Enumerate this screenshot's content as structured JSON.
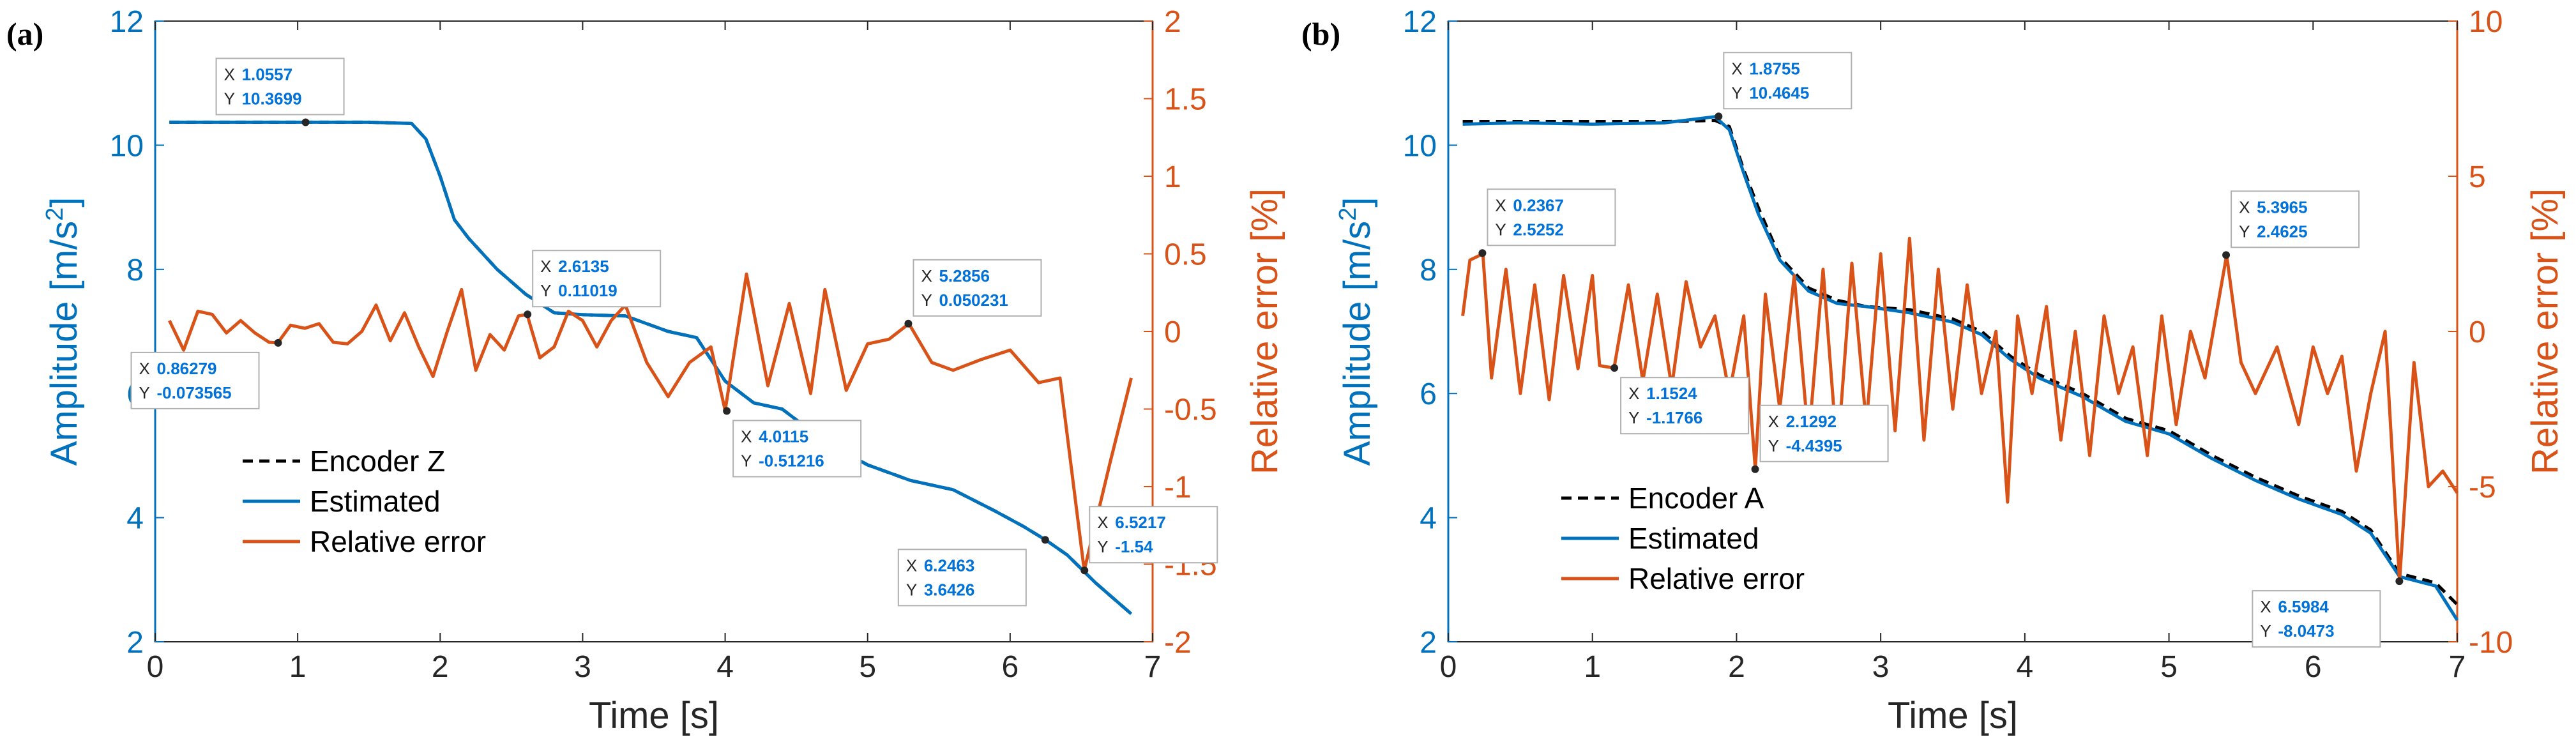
{
  "colors": {
    "blue": "#0072BD",
    "orange": "#D95319",
    "black": "#000000",
    "tipBlue": "#0072DA"
  },
  "chart_data": [
    {
      "type": "line",
      "panel_label": "(a)",
      "xlabel": "Time [s]",
      "ylabel_left": "Amplitude [m/s²]",
      "ylabel_left_base": "Amplitude [m/s",
      "ylabel_left_sup": "2",
      "ylabel_left_end": "]",
      "ylabel_right": "Relative error [%]",
      "xlim": [
        0,
        7
      ],
      "ylim_left": [
        2,
        12
      ],
      "ylim_right": [
        -2,
        2
      ],
      "xticks": [
        "0",
        "1",
        "2",
        "3",
        "4",
        "5",
        "6",
        "7"
      ],
      "yticks_left": [
        "2",
        "4",
        "6",
        "8",
        "10",
        "12"
      ],
      "yticks_right": [
        "-2",
        "-1.5",
        "-1",
        "-0.5",
        "0",
        "0.5",
        "1",
        "1.5",
        "2"
      ],
      "legend": [
        "Encoder Z",
        "Estimated",
        "Relative error"
      ],
      "series": [
        {
          "name": "Encoder Z",
          "axis": "left",
          "style": "dashed",
          "x": [
            0.1,
            0.5,
            1.0,
            1.5,
            1.8,
            1.9,
            2.0,
            2.1,
            2.2,
            2.4,
            2.6,
            2.8,
            3.0,
            3.3,
            3.6,
            3.8,
            4.0,
            4.2,
            4.4,
            4.6,
            4.8,
            5.0,
            5.3,
            5.6,
            5.9,
            6.1,
            6.25,
            6.4,
            6.6,
            6.85
          ],
          "y": [
            10.37,
            10.37,
            10.37,
            10.37,
            10.35,
            10.1,
            9.5,
            8.8,
            8.5,
            8.0,
            7.6,
            7.3,
            7.27,
            7.25,
            7.0,
            6.9,
            6.2,
            5.85,
            5.75,
            5.4,
            5.1,
            4.85,
            4.6,
            4.45,
            4.1,
            3.85,
            3.64,
            3.4,
            2.95,
            2.45
          ]
        },
        {
          "name": "Estimated",
          "axis": "left",
          "style": "solid",
          "x": [
            0.1,
            0.5,
            1.0,
            1.5,
            1.8,
            1.9,
            2.0,
            2.1,
            2.2,
            2.4,
            2.6,
            2.8,
            3.0,
            3.3,
            3.6,
            3.8,
            4.0,
            4.2,
            4.4,
            4.6,
            4.8,
            5.0,
            5.3,
            5.6,
            5.9,
            6.1,
            6.25,
            6.4,
            6.6,
            6.85
          ],
          "y": [
            10.37,
            10.37,
            10.37,
            10.37,
            10.35,
            10.1,
            9.5,
            8.8,
            8.5,
            8.0,
            7.6,
            7.3,
            7.27,
            7.25,
            7.0,
            6.9,
            6.2,
            5.85,
            5.75,
            5.4,
            5.1,
            4.85,
            4.6,
            4.45,
            4.1,
            3.85,
            3.64,
            3.4,
            2.95,
            2.45
          ]
        },
        {
          "name": "Relative error",
          "axis": "right",
          "style": "solid",
          "x": [
            0.1,
            0.2,
            0.3,
            0.4,
            0.5,
            0.6,
            0.7,
            0.8,
            0.86,
            0.95,
            1.05,
            1.15,
            1.25,
            1.35,
            1.45,
            1.55,
            1.65,
            1.75,
            1.85,
            1.95,
            2.05,
            2.15,
            2.25,
            2.35,
            2.45,
            2.55,
            2.61,
            2.7,
            2.8,
            2.9,
            3.0,
            3.1,
            3.2,
            3.3,
            3.45,
            3.6,
            3.75,
            3.9,
            4.0,
            4.15,
            4.3,
            4.45,
            4.6,
            4.7,
            4.85,
            5.0,
            5.15,
            5.29,
            5.45,
            5.6,
            5.8,
            6.0,
            6.2,
            6.35,
            6.52,
            6.7,
            6.85
          ],
          "y": [
            0.07,
            -0.12,
            0.13,
            0.11,
            -0.01,
            0.07,
            -0.01,
            -0.07,
            -0.074,
            0.04,
            0.02,
            0.05,
            -0.07,
            -0.08,
            0.0,
            0.17,
            -0.06,
            0.12,
            -0.1,
            -0.29,
            0.0,
            0.27,
            -0.25,
            -0.02,
            -0.12,
            0.1,
            0.11,
            -0.17,
            -0.1,
            0.13,
            0.07,
            -0.1,
            0.07,
            0.17,
            -0.2,
            -0.42,
            -0.2,
            -0.1,
            -0.51,
            0.37,
            -0.35,
            0.18,
            -0.4,
            0.27,
            -0.38,
            -0.08,
            -0.05,
            0.05,
            -0.2,
            -0.25,
            -0.18,
            -0.12,
            -0.33,
            -0.3,
            -1.54,
            -0.85,
            -0.3
          ]
        }
      ],
      "datatips": [
        {
          "x": "1.0557",
          "y": "10.3699",
          "px": 1.0557,
          "py": 10.3699,
          "axis": "left",
          "anchor": "left-up"
        },
        {
          "x": "0.86279",
          "y": "-0.073565",
          "px": 0.86279,
          "py": -0.073565,
          "axis": "right",
          "anchor": "left-down"
        },
        {
          "x": "2.6135",
          "y": "0.11019",
          "px": 2.6135,
          "py": 0.11019,
          "axis": "right",
          "anchor": "right-up"
        },
        {
          "x": "4.0115",
          "y": "-0.51216",
          "px": 4.0115,
          "py": -0.51216,
          "axis": "right",
          "anchor": "right-down"
        },
        {
          "x": "5.2856",
          "y": "0.050231",
          "px": 5.2856,
          "py": 0.050231,
          "axis": "right",
          "anchor": "right-up"
        },
        {
          "x": "6.2463",
          "y": "3.6426",
          "px": 6.2463,
          "py": 3.6426,
          "axis": "left",
          "anchor": "left-down"
        },
        {
          "x": "6.5217",
          "y": "-1.54",
          "px": 6.5217,
          "py": -1.54,
          "axis": "right",
          "anchor": "right-up"
        }
      ]
    },
    {
      "type": "line",
      "panel_label": "(b)",
      "xlabel": "Time [s]",
      "ylabel_left": "Amplitude [m/s²]",
      "ylabel_left_base": "Amplitude [m/s",
      "ylabel_left_sup": "2",
      "ylabel_left_end": "]",
      "ylabel_right": "Relative error [%]",
      "xlim": [
        0,
        7
      ],
      "ylim_left": [
        2,
        12
      ],
      "ylim_right": [
        -10,
        10
      ],
      "xticks": [
        "0",
        "1",
        "2",
        "3",
        "4",
        "5",
        "6",
        "7"
      ],
      "yticks_left": [
        "2",
        "4",
        "6",
        "8",
        "10",
        "12"
      ],
      "yticks_right": [
        "-10",
        "-5",
        "0",
        "5",
        "10"
      ],
      "legend": [
        "Encoder A",
        "Estimated",
        "Relative error"
      ],
      "series": [
        {
          "name": "Encoder A",
          "axis": "left",
          "style": "dashed",
          "x": [
            0.1,
            0.5,
            1.0,
            1.5,
            1.85,
            1.95,
            2.05,
            2.15,
            2.3,
            2.5,
            2.7,
            2.9,
            3.2,
            3.5,
            3.7,
            3.9,
            4.1,
            4.4,
            4.7,
            5.0,
            5.3,
            5.6,
            5.9,
            6.2,
            6.4,
            6.6,
            6.85,
            7.0
          ],
          "y": [
            10.38,
            10.38,
            10.38,
            10.38,
            10.4,
            10.3,
            9.6,
            9.0,
            8.2,
            7.7,
            7.5,
            7.4,
            7.35,
            7.2,
            7.0,
            6.6,
            6.3,
            6.0,
            5.6,
            5.4,
            5.0,
            4.65,
            4.35,
            4.1,
            3.8,
            3.1,
            2.95,
            2.6
          ]
        },
        {
          "name": "Estimated",
          "axis": "left",
          "style": "solid",
          "x": [
            0.1,
            0.5,
            1.0,
            1.5,
            1.85,
            1.95,
            2.05,
            2.15,
            2.3,
            2.5,
            2.7,
            2.9,
            3.2,
            3.5,
            3.7,
            3.9,
            4.1,
            4.4,
            4.7,
            5.0,
            5.3,
            5.6,
            5.9,
            6.2,
            6.4,
            6.6,
            6.85,
            7.0
          ],
          "y": [
            10.34,
            10.36,
            10.34,
            10.36,
            10.46,
            10.25,
            9.55,
            8.9,
            8.15,
            7.65,
            7.45,
            7.4,
            7.3,
            7.15,
            6.95,
            6.55,
            6.25,
            5.95,
            5.55,
            5.35,
            4.95,
            4.6,
            4.3,
            4.05,
            3.75,
            3.05,
            2.9,
            2.35
          ]
        },
        {
          "name": "Relative error",
          "axis": "right",
          "style": "solid",
          "x": [
            0.1,
            0.15,
            0.24,
            0.3,
            0.4,
            0.5,
            0.6,
            0.7,
            0.8,
            0.9,
            1.0,
            1.05,
            1.15,
            1.25,
            1.35,
            1.45,
            1.55,
            1.65,
            1.75,
            1.85,
            1.95,
            2.05,
            2.13,
            2.2,
            2.3,
            2.4,
            2.5,
            2.6,
            2.7,
            2.8,
            2.9,
            3.0,
            3.1,
            3.2,
            3.3,
            3.4,
            3.5,
            3.6,
            3.7,
            3.8,
            3.88,
            3.95,
            4.05,
            4.15,
            4.25,
            4.35,
            4.45,
            4.55,
            4.65,
            4.75,
            4.85,
            4.95,
            5.05,
            5.15,
            5.25,
            5.4,
            5.5,
            5.6,
            5.75,
            5.9,
            6.0,
            6.1,
            6.2,
            6.3,
            6.4,
            6.5,
            6.6,
            6.7,
            6.8,
            6.9,
            7.0
          ],
          "y": [
            0.5,
            2.3,
            2.5,
            -1.5,
            2.0,
            -2.0,
            1.5,
            -2.2,
            1.8,
            -1.2,
            1.8,
            -1.1,
            -1.18,
            1.5,
            -1.6,
            1.2,
            -1.8,
            1.6,
            -0.5,
            0.5,
            -2.0,
            0.5,
            -4.44,
            1.2,
            -2.5,
            1.8,
            -3.5,
            2.0,
            -4.0,
            2.2,
            -3.0,
            2.5,
            -3.2,
            3.0,
            -3.5,
            2.0,
            -2.5,
            1.5,
            -2.0,
            0.0,
            -5.5,
            0.5,
            -2.0,
            0.8,
            -3.5,
            0.0,
            -4.0,
            0.5,
            -2.0,
            -0.5,
            -4.0,
            0.5,
            -3.0,
            0.0,
            -1.5,
            2.46,
            -1.0,
            -2.0,
            -0.5,
            -3.0,
            -0.5,
            -2.0,
            -0.8,
            -4.5,
            -2.0,
            0.0,
            -8.05,
            -1.0,
            -5.0,
            -4.5,
            -5.2
          ]
        }
      ],
      "datatips": [
        {
          "x": "1.8755",
          "y": "10.4645",
          "px": 1.8755,
          "py": 10.4645,
          "axis": "left",
          "anchor": "right-up"
        },
        {
          "x": "0.2367",
          "y": "2.5252",
          "px": 0.2367,
          "py": 2.5252,
          "axis": "right",
          "anchor": "right-up"
        },
        {
          "x": "1.1524",
          "y": "-1.1766",
          "px": 1.1524,
          "py": -1.1766,
          "axis": "right",
          "anchor": "right-down"
        },
        {
          "x": "2.1292",
          "y": "-4.4395",
          "px": 2.1292,
          "py": -4.4395,
          "axis": "right",
          "anchor": "right-up"
        },
        {
          "x": "5.3965",
          "y": "2.4625",
          "px": 5.3965,
          "py": 2.4625,
          "axis": "right",
          "anchor": "right-up"
        },
        {
          "x": "6.5984",
          "y": "-8.0473",
          "px": 6.5984,
          "py": -8.0473,
          "axis": "right",
          "anchor": "left-down"
        }
      ]
    }
  ]
}
